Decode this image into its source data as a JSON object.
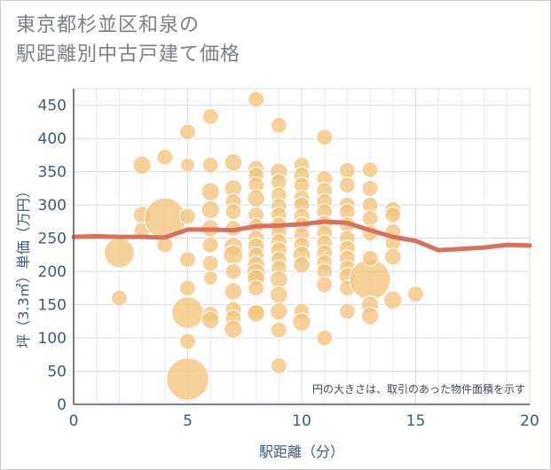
{
  "title_lines": [
    "東京都杉並区和泉の",
    "駅距離別中古戸建て価格"
  ],
  "chart_data": {
    "type": "scatter",
    "title": "東京都杉並区和泉の駅距離別中古戸建て価格",
    "xlabel": "駅距離（分）",
    "ylabel": "坪（3.3㎡）単価（万円）",
    "xlim": [
      0,
      20
    ],
    "ylim": [
      0,
      475
    ],
    "xticks": [
      0,
      5,
      10,
      15,
      20
    ],
    "yticks": [
      0,
      50,
      100,
      150,
      200,
      250,
      300,
      350,
      400,
      450
    ],
    "grid": true,
    "annotation": "円の大きさは、取引のあった物件面積を示す",
    "colors": {
      "bubble": "#f3c47c",
      "line": "#d9705a",
      "axis": "#4e5766",
      "grid": "#d5dbe3",
      "text": "#3f5a78"
    },
    "bubbles": [
      {
        "x": 2,
        "y": 228,
        "s": 3.5
      },
      {
        "x": 2,
        "y": 160,
        "s": 1
      },
      {
        "x": 3,
        "y": 360,
        "s": 1.3
      },
      {
        "x": 3,
        "y": 285,
        "s": 1.2
      },
      {
        "x": 3,
        "y": 262,
        "s": 1
      },
      {
        "x": 4,
        "y": 280,
        "s": 6.5
      },
      {
        "x": 4,
        "y": 372,
        "s": 1
      },
      {
        "x": 4,
        "y": 240,
        "s": 1
      },
      {
        "x": 5,
        "y": 38,
        "s": 7
      },
      {
        "x": 5,
        "y": 138,
        "s": 4
      },
      {
        "x": 5,
        "y": 95,
        "s": 1
      },
      {
        "x": 5,
        "y": 175,
        "s": 1
      },
      {
        "x": 5,
        "y": 218,
        "s": 1
      },
      {
        "x": 5,
        "y": 283,
        "s": 1
      },
      {
        "x": 5,
        "y": 360,
        "s": 0.8
      },
      {
        "x": 5,
        "y": 410,
        "s": 1
      },
      {
        "x": 6,
        "y": 433,
        "s": 1
      },
      {
        "x": 6,
        "y": 360,
        "s": 1
      },
      {
        "x": 6,
        "y": 320,
        "s": 1.3
      },
      {
        "x": 6,
        "y": 293,
        "s": 1.3
      },
      {
        "x": 6,
        "y": 265,
        "s": 1.2
      },
      {
        "x": 6,
        "y": 240,
        "s": 1
      },
      {
        "x": 6,
        "y": 212,
        "s": 1
      },
      {
        "x": 6,
        "y": 190,
        "s": 0.8
      },
      {
        "x": 6,
        "y": 135,
        "s": 1.1
      },
      {
        "x": 6,
        "y": 127,
        "s": 1.2
      },
      {
        "x": 7,
        "y": 364,
        "s": 1.2
      },
      {
        "x": 7,
        "y": 325,
        "s": 1.2
      },
      {
        "x": 7,
        "y": 305,
        "s": 1
      },
      {
        "x": 7,
        "y": 290,
        "s": 1
      },
      {
        "x": 7,
        "y": 265,
        "s": 1
      },
      {
        "x": 7,
        "y": 238,
        "s": 1.3
      },
      {
        "x": 7,
        "y": 225,
        "s": 1.5
      },
      {
        "x": 7,
        "y": 200,
        "s": 1
      },
      {
        "x": 7,
        "y": 170,
        "s": 1.2
      },
      {
        "x": 7,
        "y": 143,
        "s": 1
      },
      {
        "x": 7,
        "y": 130,
        "s": 1
      },
      {
        "x": 7,
        "y": 113,
        "s": 1.3
      },
      {
        "x": 8,
        "y": 459,
        "s": 1
      },
      {
        "x": 8,
        "y": 355,
        "s": 1
      },
      {
        "x": 8,
        "y": 345,
        "s": 1
      },
      {
        "x": 8,
        "y": 330,
        "s": 1
      },
      {
        "x": 8,
        "y": 310,
        "s": 1.2
      },
      {
        "x": 8,
        "y": 285,
        "s": 1
      },
      {
        "x": 8,
        "y": 268,
        "s": 1
      },
      {
        "x": 8,
        "y": 250,
        "s": 1
      },
      {
        "x": 8,
        "y": 238,
        "s": 1.1
      },
      {
        "x": 8,
        "y": 225,
        "s": 1
      },
      {
        "x": 8,
        "y": 210,
        "s": 1.2
      },
      {
        "x": 8,
        "y": 198,
        "s": 1.4
      },
      {
        "x": 8,
        "y": 190,
        "s": 1.2
      },
      {
        "x": 8,
        "y": 175,
        "s": 1
      },
      {
        "x": 8,
        "y": 140,
        "s": 1
      },
      {
        "x": 8,
        "y": 137,
        "s": 1.2
      },
      {
        "x": 9,
        "y": 420,
        "s": 1
      },
      {
        "x": 9,
        "y": 350,
        "s": 1.2
      },
      {
        "x": 9,
        "y": 335,
        "s": 1
      },
      {
        "x": 9,
        "y": 315,
        "s": 1
      },
      {
        "x": 9,
        "y": 298,
        "s": 1
      },
      {
        "x": 9,
        "y": 285,
        "s": 1
      },
      {
        "x": 9,
        "y": 270,
        "s": 1
      },
      {
        "x": 9,
        "y": 258,
        "s": 1
      },
      {
        "x": 9,
        "y": 245,
        "s": 1
      },
      {
        "x": 9,
        "y": 232,
        "s": 1.1
      },
      {
        "x": 9,
        "y": 218,
        "s": 1
      },
      {
        "x": 9,
        "y": 205,
        "s": 1
      },
      {
        "x": 9,
        "y": 188,
        "s": 1.2
      },
      {
        "x": 9,
        "y": 165,
        "s": 1.2
      },
      {
        "x": 9,
        "y": 140,
        "s": 1.2
      },
      {
        "x": 9,
        "y": 112,
        "s": 1
      },
      {
        "x": 9,
        "y": 58,
        "s": 1
      },
      {
        "x": 10,
        "y": 360,
        "s": 1
      },
      {
        "x": 10,
        "y": 345,
        "s": 1
      },
      {
        "x": 10,
        "y": 330,
        "s": 1
      },
      {
        "x": 10,
        "y": 310,
        "s": 1
      },
      {
        "x": 10,
        "y": 300,
        "s": 1
      },
      {
        "x": 10,
        "y": 283,
        "s": 1
      },
      {
        "x": 10,
        "y": 270,
        "s": 1
      },
      {
        "x": 10,
        "y": 255,
        "s": 1
      },
      {
        "x": 10,
        "y": 240,
        "s": 1
      },
      {
        "x": 10,
        "y": 225,
        "s": 1.2
      },
      {
        "x": 10,
        "y": 210,
        "s": 1.1
      },
      {
        "x": 10,
        "y": 140,
        "s": 1
      },
      {
        "x": 10,
        "y": 124,
        "s": 1.3
      },
      {
        "x": 11,
        "y": 402,
        "s": 1
      },
      {
        "x": 11,
        "y": 340,
        "s": 1
      },
      {
        "x": 11,
        "y": 322,
        "s": 1
      },
      {
        "x": 11,
        "y": 305,
        "s": 1
      },
      {
        "x": 11,
        "y": 290,
        "s": 1
      },
      {
        "x": 11,
        "y": 272,
        "s": 1
      },
      {
        "x": 11,
        "y": 258,
        "s": 1
      },
      {
        "x": 11,
        "y": 243,
        "s": 1
      },
      {
        "x": 11,
        "y": 228,
        "s": 1
      },
      {
        "x": 11,
        "y": 213,
        "s": 1
      },
      {
        "x": 11,
        "y": 200,
        "s": 1
      },
      {
        "x": 11,
        "y": 180,
        "s": 1
      },
      {
        "x": 11,
        "y": 100,
        "s": 1
      },
      {
        "x": 12,
        "y": 352,
        "s": 1
      },
      {
        "x": 12,
        "y": 330,
        "s": 1
      },
      {
        "x": 12,
        "y": 300,
        "s": 1
      },
      {
        "x": 12,
        "y": 290,
        "s": 1
      },
      {
        "x": 12,
        "y": 270,
        "s": 1
      },
      {
        "x": 12,
        "y": 250,
        "s": 1
      },
      {
        "x": 12,
        "y": 235,
        "s": 1
      },
      {
        "x": 12,
        "y": 220,
        "s": 1
      },
      {
        "x": 12,
        "y": 205,
        "s": 1
      },
      {
        "x": 12,
        "y": 193,
        "s": 1.1
      },
      {
        "x": 12,
        "y": 175,
        "s": 1
      },
      {
        "x": 12,
        "y": 140,
        "s": 1
      },
      {
        "x": 13,
        "y": 188,
        "s": 6.5
      },
      {
        "x": 13,
        "y": 353,
        "s": 1
      },
      {
        "x": 13,
        "y": 325,
        "s": 1
      },
      {
        "x": 13,
        "y": 300,
        "s": 1
      },
      {
        "x": 13,
        "y": 280,
        "s": 1
      },
      {
        "x": 13,
        "y": 258,
        "s": 1
      },
      {
        "x": 13,
        "y": 220,
        "s": 1
      },
      {
        "x": 13,
        "y": 150,
        "s": 1.2
      },
      {
        "x": 13,
        "y": 133,
        "s": 1.2
      },
      {
        "x": 14,
        "y": 293,
        "s": 1
      },
      {
        "x": 14,
        "y": 285,
        "s": 1
      },
      {
        "x": 14,
        "y": 260,
        "s": 1
      },
      {
        "x": 14,
        "y": 243,
        "s": 1
      },
      {
        "x": 14,
        "y": 222,
        "s": 1.1
      },
      {
        "x": 14,
        "y": 157,
        "s": 1.3
      },
      {
        "x": 15,
        "y": 166,
        "s": 1
      }
    ],
    "trend": {
      "x": [
        0,
        1,
        2,
        3,
        4,
        5,
        6,
        7,
        8,
        9,
        10,
        11,
        12,
        13,
        14,
        15,
        16,
        17,
        18,
        19,
        20
      ],
      "y": [
        252,
        253,
        252,
        252,
        251,
        263,
        263,
        262,
        268,
        269,
        271,
        275,
        273,
        262,
        252,
        246,
        232,
        234,
        236,
        240,
        239
      ]
    }
  }
}
